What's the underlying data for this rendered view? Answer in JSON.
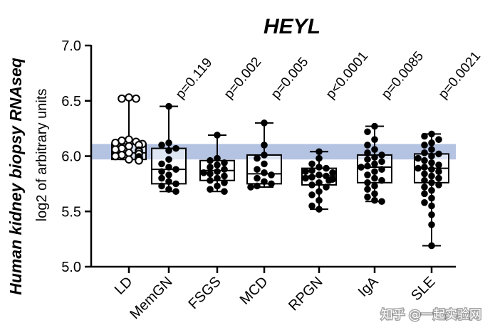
{
  "chart_data": {
    "type": "box",
    "title": "HEYL",
    "ylabel": "Human kidney biopsy RNAseq",
    "ylabel_secondary": "log2 of arbitrary units",
    "ylim": [
      5.0,
      7.0
    ],
    "yticks": [
      "5.0",
      "5.5",
      "6.0",
      "6.5",
      "7.0"
    ],
    "reference_band": [
      5.97,
      6.11
    ],
    "reference_band_color": "#b4c3e2",
    "categories": [
      "LD",
      "MemGN",
      "FSGS",
      "MCD",
      "RPGN",
      "IgA",
      "SLE"
    ],
    "series": [
      {
        "category": "LD",
        "min": 5.97,
        "q1": 5.97,
        "median": 6.03,
        "q3": 6.11,
        "max": 6.52,
        "pvalue": "",
        "hollow": true,
        "points": [
          6.53,
          6.52,
          6.52,
          6.15,
          6.14,
          6.13,
          6.12,
          6.11,
          6.1,
          6.09,
          6.07,
          6.06,
          6.05,
          6.04,
          6.03,
          6.02,
          6.01,
          6.0,
          5.99,
          5.98,
          5.97,
          5.97,
          5.96
        ]
      },
      {
        "category": "MemGN",
        "min": 5.68,
        "q1": 5.75,
        "median": 5.88,
        "q3": 6.07,
        "max": 6.45,
        "pvalue": "p=0.119",
        "hollow": false,
        "points": [
          6.45,
          6.12,
          6.1,
          6.07,
          6.05,
          5.97,
          5.93,
          5.9,
          5.88,
          5.86,
          5.83,
          5.8,
          5.77,
          5.75,
          5.73,
          5.7,
          5.68
        ]
      },
      {
        "category": "FSGS",
        "min": 5.68,
        "q1": 5.78,
        "median": 5.87,
        "q3": 5.96,
        "max": 6.19,
        "pvalue": "p=0.002",
        "hollow": false,
        "points": [
          6.19,
          5.98,
          5.96,
          5.94,
          5.92,
          5.9,
          5.88,
          5.86,
          5.85,
          5.84,
          5.82,
          5.8,
          5.78,
          5.76,
          5.73,
          5.7,
          5.68
        ]
      },
      {
        "category": "MCD",
        "min": 5.72,
        "q1": 5.75,
        "median": 5.84,
        "q3": 6.01,
        "max": 6.3,
        "pvalue": "p=0.005",
        "hollow": false,
        "points": [
          6.3,
          6.1,
          6.01,
          5.98,
          5.93,
          5.88,
          5.85,
          5.83,
          5.8,
          5.77,
          5.75,
          5.73,
          5.72
        ]
      },
      {
        "category": "RPGN",
        "min": 5.52,
        "q1": 5.74,
        "median": 5.82,
        "q3": 5.89,
        "max": 6.04,
        "pvalue": "p<0.0001",
        "hollow": false,
        "points": [
          6.04,
          5.98,
          5.93,
          5.9,
          5.89,
          5.87,
          5.86,
          5.85,
          5.83,
          5.82,
          5.81,
          5.8,
          5.79,
          5.78,
          5.76,
          5.74,
          5.72,
          5.68,
          5.65,
          5.6,
          5.55,
          5.52
        ]
      },
      {
        "category": "IgA",
        "min": 5.59,
        "q1": 5.76,
        "median": 5.9,
        "q3": 6.01,
        "max": 6.27,
        "pvalue": "p=0.0085",
        "hollow": false,
        "points": [
          6.27,
          6.22,
          6.15,
          6.1,
          6.06,
          6.03,
          6.01,
          5.99,
          5.97,
          5.95,
          5.93,
          5.91,
          5.9,
          5.88,
          5.86,
          5.83,
          5.8,
          5.78,
          5.76,
          5.73,
          5.7,
          5.66,
          5.63,
          5.6,
          5.59
        ]
      },
      {
        "category": "SLE",
        "min": 5.19,
        "q1": 5.76,
        "median": 5.89,
        "q3": 6.02,
        "max": 6.2,
        "pvalue": "p=0.0021",
        "hollow": false,
        "points": [
          6.2,
          6.18,
          6.15,
          6.12,
          6.1,
          6.06,
          6.03,
          6.02,
          6.0,
          5.98,
          5.96,
          5.94,
          5.92,
          5.9,
          5.89,
          5.88,
          5.86,
          5.84,
          5.82,
          5.8,
          5.78,
          5.76,
          5.74,
          5.72,
          5.69,
          5.66,
          5.62,
          5.58,
          5.55,
          5.47,
          5.38,
          5.19
        ]
      }
    ]
  },
  "watermark": "知乎 @一起实验网"
}
